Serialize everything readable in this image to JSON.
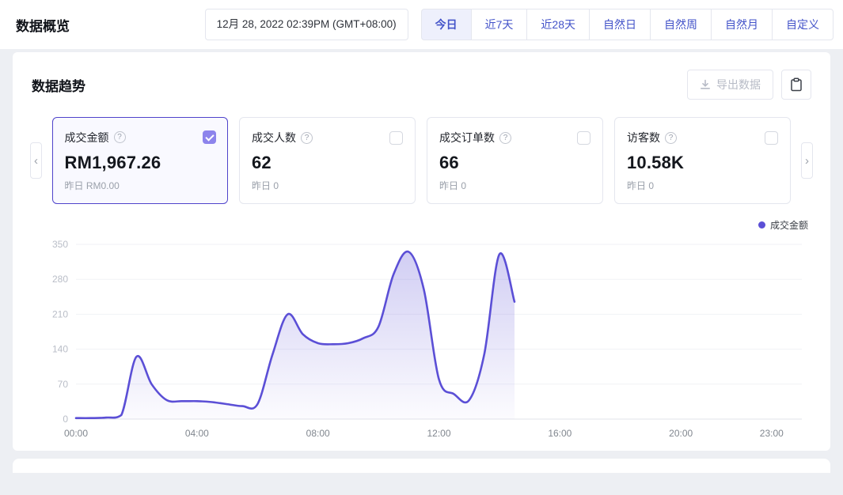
{
  "header": {
    "title": "数据概览",
    "timestamp": "12月 28, 2022 02:39PM (GMT+08:00)",
    "tabs": [
      {
        "label": "今日",
        "active": true
      },
      {
        "label": "近7天",
        "active": false
      },
      {
        "label": "近28天",
        "active": false
      },
      {
        "label": "自然日",
        "active": false
      },
      {
        "label": "自然周",
        "active": false
      },
      {
        "label": "自然月",
        "active": false
      },
      {
        "label": "自定义",
        "active": false
      }
    ]
  },
  "trend": {
    "title": "数据趋势",
    "export_button": "导出数据",
    "metrics": [
      {
        "label": "成交金额",
        "value": "RM1,967.26",
        "yesterday": "昨日 RM0.00",
        "selected": true
      },
      {
        "label": "成交人数",
        "value": "62",
        "yesterday": "昨日 0",
        "selected": false
      },
      {
        "label": "成交订单数",
        "value": "66",
        "yesterday": "昨日 0",
        "selected": false
      },
      {
        "label": "访客数",
        "value": "10.58K",
        "yesterday": "昨日 0",
        "selected": false
      }
    ],
    "legend": {
      "label": "成交金额"
    }
  },
  "colors": {
    "accent": "#5b4fd6",
    "tab_text": "#4353c9",
    "selected_card_border": "#4f43cb"
  },
  "chart_data": {
    "type": "area",
    "series": [
      {
        "name": "成交金额",
        "x": [
          0,
          0.5,
          1,
          1.5,
          2,
          2.5,
          3,
          3.5,
          4,
          4.5,
          5,
          5.5,
          6,
          6.5,
          7,
          7.5,
          8,
          8.5,
          9,
          9.5,
          10,
          10.5,
          11,
          11.5,
          12,
          12.5,
          13,
          13.5,
          14,
          14.5
        ],
        "values": [
          2,
          2,
          3,
          8,
          125,
          70,
          38,
          36,
          36,
          34,
          30,
          26,
          30,
          130,
          210,
          170,
          152,
          150,
          152,
          162,
          185,
          290,
          335,
          260,
          80,
          50,
          38,
          130,
          330,
          235
        ]
      }
    ],
    "x_ticks": [
      "00:00",
      "04:00",
      "08:00",
      "12:00",
      "16:00",
      "20:00",
      "23:00"
    ],
    "y_ticks": [
      0,
      70,
      140,
      210,
      280,
      350
    ],
    "ylim": [
      0,
      350
    ],
    "xlim": [
      0,
      24
    ],
    "line_color": "#5b4fd6",
    "grid": true,
    "legend_position": "top-right"
  }
}
